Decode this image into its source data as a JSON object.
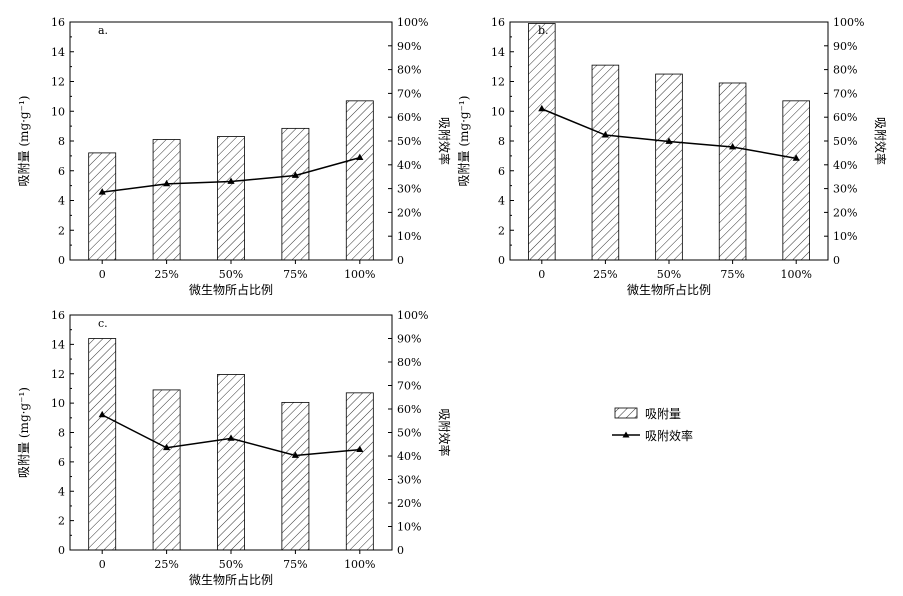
{
  "chart_data": [
    {
      "type": "bar",
      "title": "a.",
      "xlabel": "微生物所占比例",
      "ylabel": "吸附量 (mg·g⁻¹)",
      "y2label": "吸附效率",
      "categories": [
        "0",
        "25%",
        "50%",
        "75%",
        "100%"
      ],
      "ylim": [
        0,
        16
      ],
      "yticks": [
        "0",
        "2",
        "4",
        "6",
        "8",
        "10",
        "12",
        "14",
        "16"
      ],
      "y2lim": [
        0,
        100
      ],
      "y2ticks": [
        "0",
        "10%",
        "20%",
        "30%",
        "40%",
        "50%",
        "60%",
        "70%",
        "80%",
        "90%",
        "100%"
      ],
      "series": [
        {
          "name": "吸附量",
          "type": "bar",
          "axis": "left",
          "values": [
            7.2,
            8.1,
            8.3,
            8.85,
            10.7
          ]
        },
        {
          "name": "吸附效率",
          "type": "line",
          "axis": "right",
          "values": [
            28.5,
            32,
            33,
            35.5,
            43
          ]
        }
      ]
    },
    {
      "type": "bar",
      "title": "b.",
      "xlabel": "微生物所占比例",
      "ylabel": "吸附量 (mg·g⁻¹)",
      "y2label": "吸附效率",
      "categories": [
        "0",
        "25%",
        "50%",
        "75%",
        "100%"
      ],
      "ylim": [
        0,
        16
      ],
      "yticks": [
        "0",
        "2",
        "4",
        "6",
        "8",
        "10",
        "12",
        "14",
        "16"
      ],
      "y2lim": [
        0,
        100
      ],
      "y2ticks": [
        "0",
        "10%",
        "20%",
        "30%",
        "40%",
        "50%",
        "60%",
        "70%",
        "80%",
        "90%",
        "100%"
      ],
      "series": [
        {
          "name": "吸附量",
          "type": "bar",
          "axis": "left",
          "values": [
            15.9,
            13.1,
            12.5,
            11.9,
            10.7
          ]
        },
        {
          "name": "吸附效率",
          "type": "line",
          "axis": "right",
          "values": [
            63.5,
            52.5,
            49.8,
            47.5,
            42.7
          ]
        }
      ]
    },
    {
      "type": "bar",
      "title": "c.",
      "xlabel": "微生物所占比例",
      "ylabel": "吸附量 (mg·g⁻¹)",
      "y2label": "吸附效率",
      "categories": [
        "0",
        "25%",
        "50%",
        "75%",
        "100%"
      ],
      "ylim": [
        0,
        16
      ],
      "yticks": [
        "0",
        "2",
        "4",
        "6",
        "8",
        "10",
        "12",
        "14",
        "16"
      ],
      "y2lim": [
        0,
        100
      ],
      "y2ticks": [
        "0",
        "10%",
        "20%",
        "30%",
        "40%",
        "50%",
        "60%",
        "70%",
        "80%",
        "90%",
        "100%"
      ],
      "series": [
        {
          "name": "吸附量",
          "type": "bar",
          "axis": "left",
          "values": [
            14.4,
            10.9,
            11.95,
            10.05,
            10.7
          ]
        },
        {
          "name": "吸附效率",
          "type": "line",
          "axis": "right",
          "values": [
            57.5,
            43.5,
            47.5,
            40.2,
            42.7
          ]
        }
      ]
    }
  ],
  "legend": {
    "bar_label": "吸附量",
    "line_label": "吸附效率"
  }
}
